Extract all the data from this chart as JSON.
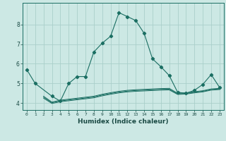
{
  "title": "",
  "xlabel": "Humidex (Indice chaleur)",
  "ylabel": "",
  "bg_color": "#cce8e4",
  "grid_color": "#aacfca",
  "line_color": "#1a6e62",
  "x_main": [
    0,
    1,
    3,
    4,
    5,
    6,
    7,
    8,
    9,
    10,
    11,
    12,
    13,
    14,
    15,
    16,
    17,
    18,
    19,
    20,
    21,
    22,
    23
  ],
  "y_main": [
    5.7,
    5.0,
    4.35,
    4.1,
    5.0,
    5.35,
    5.35,
    6.6,
    7.05,
    7.4,
    8.6,
    8.4,
    8.2,
    7.55,
    6.25,
    5.85,
    5.4,
    4.55,
    4.5,
    4.65,
    4.95,
    5.45,
    4.8
  ],
  "x_flat": [
    2,
    3,
    4,
    5,
    6,
    7,
    8,
    9,
    10,
    11,
    12,
    13,
    14,
    15,
    16,
    17,
    18,
    19,
    20,
    21,
    22,
    23
  ],
  "y_flat1": [
    4.35,
    4.05,
    4.15,
    4.2,
    4.25,
    4.3,
    4.35,
    4.45,
    4.53,
    4.6,
    4.65,
    4.68,
    4.7,
    4.72,
    4.74,
    4.75,
    4.5,
    4.52,
    4.58,
    4.63,
    4.72,
    4.75
  ],
  "y_flat2": [
    4.3,
    4.02,
    4.11,
    4.16,
    4.21,
    4.26,
    4.31,
    4.41,
    4.49,
    4.56,
    4.61,
    4.64,
    4.66,
    4.68,
    4.7,
    4.71,
    4.47,
    4.49,
    4.55,
    4.6,
    4.69,
    4.72
  ],
  "y_flat3": [
    4.25,
    3.98,
    4.07,
    4.12,
    4.17,
    4.22,
    4.27,
    4.37,
    4.45,
    4.52,
    4.57,
    4.6,
    4.62,
    4.64,
    4.66,
    4.67,
    4.44,
    4.46,
    4.52,
    4.57,
    4.66,
    4.69
  ],
  "yticks": [
    4,
    5,
    6,
    7,
    8
  ],
  "ylim": [
    3.65,
    9.1
  ],
  "xlim": [
    -0.5,
    23.5
  ]
}
